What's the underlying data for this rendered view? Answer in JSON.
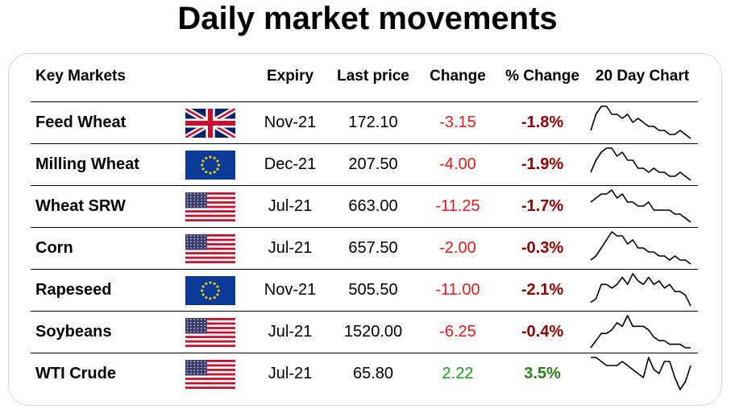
{
  "title": "Daily market movements",
  "headers": {
    "market": "Key Markets",
    "expiry": "Expiry",
    "last_price": "Last price",
    "change": "Change",
    "pct_change": "% Change",
    "chart": "20 Day Chart"
  },
  "colors": {
    "negative_change": "#e11b1b",
    "negative_pct": "#8b0000",
    "positive_change": "#1a9a1a",
    "positive_pct": "#2e7d1c"
  },
  "chart_data": {
    "type": "table",
    "columns": [
      "Key Markets",
      "Expiry",
      "Last price",
      "Change",
      "% Change",
      "20 Day Chart"
    ],
    "rows": [
      {
        "market": "Feed Wheat",
        "flag": "uk-flag-icon",
        "expiry": "Nov-21",
        "last_price": "172.10",
        "change": "-3.15",
        "pct_change": "-1.8%",
        "direction": "down",
        "trend": [
          2,
          6,
          8,
          8,
          6,
          6,
          5,
          6,
          4,
          5,
          4,
          3,
          3,
          2,
          2,
          1,
          1,
          2,
          1,
          0
        ]
      },
      {
        "market": "Milling Wheat",
        "flag": "eu-flag-icon",
        "expiry": "Dec-21",
        "last_price": "207.50",
        "change": "-4.00",
        "pct_change": "-1.9%",
        "direction": "down",
        "trend": [
          2,
          5,
          7,
          8,
          8,
          6,
          7,
          5,
          5,
          3,
          3,
          2,
          3,
          2,
          2,
          1,
          1,
          2,
          1,
          0
        ]
      },
      {
        "market": "Wheat SRW",
        "flag": "us-flag-icon",
        "expiry": "Jul-21",
        "last_price": "663.00",
        "change": "-11.25",
        "pct_change": "-1.7%",
        "direction": "down",
        "trend": [
          5,
          6,
          7,
          7,
          8,
          6,
          7,
          5,
          5,
          4,
          4,
          5,
          3,
          3,
          3,
          3,
          2,
          2,
          1,
          0
        ]
      },
      {
        "market": "Corn",
        "flag": "us-flag-icon",
        "expiry": "Jul-21",
        "last_price": "657.50",
        "change": "-2.00",
        "pct_change": "-0.3%",
        "direction": "down",
        "trend": [
          2,
          3,
          5,
          7,
          9,
          8,
          8,
          6,
          7,
          5,
          5,
          4,
          4,
          3,
          3,
          2,
          3,
          2,
          2,
          1
        ]
      },
      {
        "market": "Rapeseed",
        "flag": "eu-flag-icon",
        "expiry": "Nov-21",
        "last_price": "505.50",
        "change": "-11.00",
        "pct_change": "-2.1%",
        "direction": "down",
        "trend": [
          1,
          2,
          6,
          6,
          5,
          6,
          8,
          6,
          9,
          7,
          6,
          8,
          6,
          7,
          5,
          6,
          4,
          4,
          3,
          0
        ]
      },
      {
        "market": "Soybeans",
        "flag": "us-flag-icon",
        "expiry": "Jul-21",
        "last_price": "1520.00",
        "change": "-6.25",
        "pct_change": "-0.4%",
        "direction": "down",
        "trend": [
          1,
          3,
          5,
          5,
          6,
          8,
          7,
          10,
          7,
          7,
          7,
          6,
          4,
          3,
          3,
          2,
          2,
          2,
          1,
          1
        ]
      },
      {
        "market": "WTI Crude",
        "flag": "us-flag-icon",
        "expiry": "Jul-21",
        "last_price": "65.80",
        "change": "2.22",
        "pct_change": "3.5%",
        "direction": "up",
        "trend": [
          8,
          8,
          7,
          6,
          6,
          6,
          7,
          6,
          5,
          4,
          3,
          8,
          5,
          4,
          7,
          7,
          3,
          0,
          2,
          6
        ]
      }
    ]
  }
}
